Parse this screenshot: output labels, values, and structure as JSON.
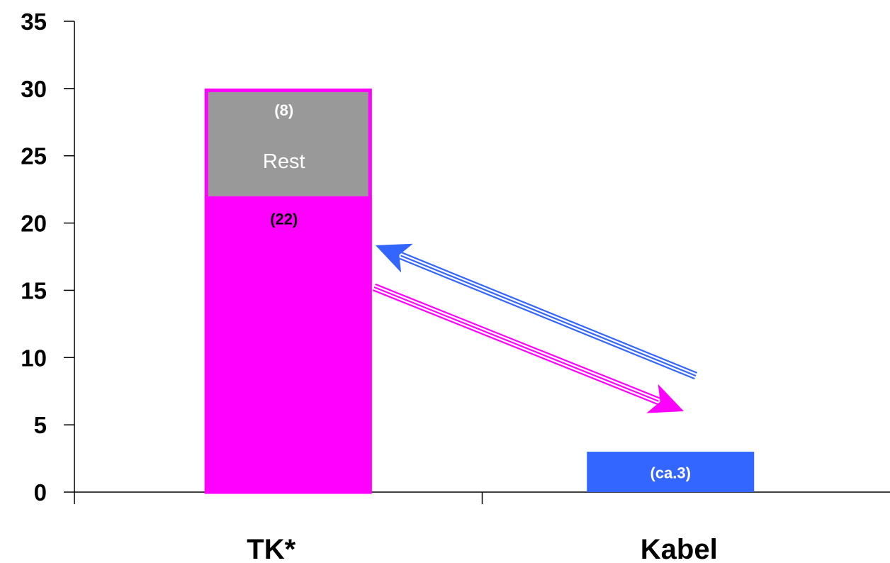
{
  "chart_data": {
    "type": "bar",
    "stacked": true,
    "categories": [
      "TK*",
      "Kabel"
    ],
    "ylim": [
      0,
      35
    ],
    "yticks": [
      0,
      5,
      10,
      15,
      20,
      25,
      30,
      35
    ],
    "tick_labels": [
      "0",
      "5",
      "10",
      "15",
      "20",
      "25",
      "30",
      "35"
    ],
    "grid": false,
    "legend": "none",
    "bars": [
      {
        "category": "TK*",
        "segments": [
          {
            "value": 22,
            "color": "#ff00ff",
            "value_label": "(22)"
          },
          {
            "value": 8,
            "color": "#999999",
            "value_label": "(8)",
            "label": "Rest"
          }
        ],
        "outline_color": "#ff00ff"
      },
      {
        "category": "Kabel",
        "segments": [
          {
            "value": 3,
            "color": "#3366ff",
            "value_label": "(ca.3)"
          }
        ]
      }
    ],
    "annotations": [
      {
        "type": "arrow",
        "from": "Kabel",
        "to": "TK*",
        "color": "#3366ff"
      },
      {
        "type": "arrow",
        "from": "TK*",
        "to": "Kabel",
        "color": "#ff00ff"
      }
    ]
  }
}
